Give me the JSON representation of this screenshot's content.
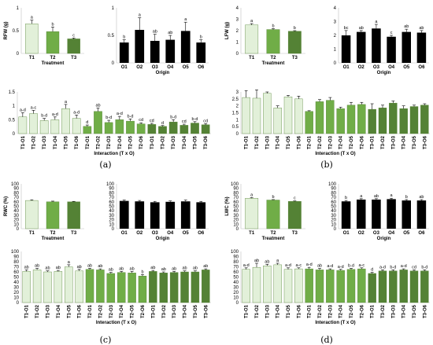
{
  "chart_data": [
    {
      "id": "a-treat",
      "type": "bar",
      "categories": [
        "T1",
        "T2",
        "T3"
      ],
      "values": [
        0.65,
        0.48,
        0.32
      ],
      "errors": [
        0.08,
        0.1,
        0.02
      ],
      "letters": [
        "a",
        "b",
        "c"
      ],
      "colors": [
        "#e2f0d9",
        "#70ad47",
        "#548235"
      ],
      "xlabel": "Treatment",
      "ylabel": "RFW (g)",
      "ylim": [
        0,
        1
      ],
      "ticks": [
        0,
        0.5,
        1
      ],
      "tick_labels": [
        "0",
        "0.5",
        "1"
      ]
    },
    {
      "id": "a-origin",
      "type": "bar",
      "categories": [
        "O1",
        "O2",
        "O3",
        "O4",
        "O5",
        "O6"
      ],
      "values": [
        0.37,
        0.6,
        0.4,
        0.42,
        0.58,
        0.37
      ],
      "errors": [
        0.05,
        0.22,
        0.12,
        0.08,
        0.16,
        0.05
      ],
      "letters": [
        "b",
        "a",
        "ab",
        "ab",
        "a",
        "b"
      ],
      "colors": [
        "#000000"
      ],
      "xlabel": "Origin",
      "ylabel": "",
      "ylim": [
        0,
        1
      ],
      "ticks": [
        0,
        0.5,
        1
      ],
      "tick_labels": [
        "0",
        "0.5",
        "1"
      ]
    },
    {
      "id": "a-inter",
      "type": "bar",
      "categories": [
        "T1-O1",
        "T1-O2",
        "T1-O3",
        "T1-O4",
        "T1-O5",
        "T1-O6",
        "T2-O1",
        "T2-O2",
        "T2-O3",
        "T2-O4",
        "T2-O5",
        "T2-O6",
        "T3-O1",
        "T3-O2",
        "T3-O3",
        "T3-O4",
        "T3-O5",
        "T3-O6"
      ],
      "values": [
        0.6,
        0.72,
        0.47,
        0.5,
        0.9,
        0.55,
        0.26,
        0.8,
        0.4,
        0.5,
        0.45,
        0.35,
        0.33,
        0.26,
        0.42,
        0.3,
        0.38,
        0.32
      ],
      "errors": [
        0.15,
        0.12,
        0.08,
        0.1,
        0.15,
        0.12,
        0.05,
        0.12,
        0.08,
        0.12,
        0.08,
        0.04,
        0.04,
        0.03,
        0.08,
        0.04,
        0.05,
        0.04
      ],
      "letters": [
        "a-d",
        "a-c",
        "b-d",
        "a-d",
        "a",
        "a-d",
        "d",
        "ab",
        "b-d",
        "a-d",
        "b-d",
        "cd",
        "cd",
        "d",
        "b-d",
        "cd",
        "b-d",
        "cd"
      ],
      "colors": [
        "#e2f0d9",
        "#70ad47",
        "#548235"
      ],
      "xlabel": "Interaction (T x O)",
      "ylabel": "",
      "ylim": [
        0,
        1.5
      ],
      "ticks": [
        0,
        0.5,
        1,
        1.5
      ],
      "tick_labels": [
        "0",
        "0.5",
        "1",
        "1.5"
      ]
    },
    {
      "id": "b-treat",
      "type": "bar",
      "categories": [
        "T1",
        "T2",
        "T3"
      ],
      "values": [
        2.5,
        2.1,
        1.95
      ],
      "errors": [
        0.12,
        0.08,
        0.05
      ],
      "letters": [
        "a",
        "b",
        "b"
      ],
      "colors": [
        "#e2f0d9",
        "#70ad47",
        "#548235"
      ],
      "xlabel": "Treatment",
      "ylabel": "LFW (g)",
      "ylim": [
        0,
        4
      ],
      "ticks": [
        0,
        1,
        2,
        3,
        4
      ],
      "tick_labels": [
        "0",
        "1",
        "2",
        "3",
        "4"
      ]
    },
    {
      "id": "b-origin",
      "type": "bar",
      "categories": [
        "O1",
        "O2",
        "O3",
        "O4",
        "O5",
        "O6"
      ],
      "values": [
        2.0,
        2.25,
        2.5,
        1.9,
        2.25,
        2.2
      ],
      "errors": [
        0.35,
        0.1,
        0.3,
        0.1,
        0.2,
        0.15
      ],
      "letters": [
        "bc",
        "ab",
        "a",
        "c",
        "ab",
        "ab"
      ],
      "colors": [
        "#000000"
      ],
      "xlabel": "Origin",
      "ylabel": "",
      "ylim": [
        0,
        4
      ],
      "ticks": [
        0,
        1,
        2,
        3,
        4
      ],
      "tick_labels": [
        "0",
        "1",
        "2",
        "3",
        "4"
      ]
    },
    {
      "id": "b-inter",
      "type": "bar",
      "categories": [
        "T1-O1",
        "T1-O2",
        "T1-O3",
        "T1-O4",
        "T1-O5",
        "T1-O6",
        "T2-O1",
        "T2-O2",
        "T2-O3",
        "T2-O4",
        "T2-O5",
        "T2-O6",
        "T3-O1",
        "T3-O2",
        "T3-O3",
        "T3-O4",
        "T3-O5",
        "T3-O6"
      ],
      "values": [
        2.6,
        2.55,
        2.9,
        1.85,
        2.65,
        2.5,
        1.6,
        2.3,
        2.4,
        1.8,
        2.05,
        2.1,
        1.75,
        1.85,
        2.2,
        1.8,
        1.95,
        2.05
      ],
      "errors": [
        0.5,
        0.6,
        0.1,
        0.15,
        0.1,
        0.2,
        0.05,
        0.15,
        0.2,
        0.1,
        0.2,
        0.15,
        0.4,
        0.2,
        0.15,
        0.2,
        0.1,
        0.1
      ],
      "letters": [
        "",
        "",
        "",
        "",
        "",
        "",
        "",
        "",
        "",
        "",
        "",
        "",
        "",
        "",
        "",
        "",
        "",
        ""
      ],
      "colors": [
        "#e2f0d9",
        "#70ad47",
        "#548235"
      ],
      "xlabel": "Interaction (T x O)",
      "ylabel": "",
      "ylim": [
        0,
        3
      ],
      "ticks": [
        0,
        0.5,
        1,
        1.5,
        2,
        2.5,
        3
      ],
      "tick_labels": [
        "0",
        "0.5",
        "1",
        "1.5",
        "2",
        "2.5",
        "3"
      ]
    },
    {
      "id": "c-treat",
      "type": "bar",
      "categories": [
        "T1",
        "T2",
        "T3"
      ],
      "values": [
        63,
        60,
        60
      ],
      "errors": [
        1.5,
        1.5,
        1
      ],
      "letters": [
        "",
        "",
        ""
      ],
      "colors": [
        "#e2f0d9",
        "#70ad47",
        "#548235"
      ],
      "xlabel": "Treatment",
      "ylabel": "RWC (%)",
      "ylim": [
        0,
        100
      ],
      "ticks": [
        0,
        10,
        20,
        30,
        40,
        50,
        60,
        70,
        80,
        90,
        100
      ],
      "tick_labels": [
        "0",
        "10",
        "20",
        "30",
        "40",
        "50",
        "60",
        "70",
        "80",
        "90",
        "100"
      ]
    },
    {
      "id": "c-origin",
      "type": "bar",
      "categories": [
        "O1",
        "O2",
        "O3",
        "O4",
        "O5",
        "O6"
      ],
      "values": [
        62,
        61,
        59,
        60,
        61,
        59
      ],
      "errors": [
        2,
        2,
        2,
        2,
        3,
        2
      ],
      "letters": [
        "",
        "",
        "",
        "",
        "",
        ""
      ],
      "colors": [
        "#000000"
      ],
      "xlabel": "Origin",
      "ylabel": "",
      "ylim": [
        0,
        100
      ],
      "ticks": [
        0,
        10,
        20,
        30,
        40,
        50,
        60,
        70,
        80,
        90,
        100
      ],
      "tick_labels": [
        "0",
        "10",
        "20",
        "30",
        "40",
        "50",
        "60",
        "70",
        "80",
        "90",
        "100"
      ]
    },
    {
      "id": "c-inter",
      "type": "bar",
      "categories": [
        "T1-O1",
        "T1-O2",
        "T1-O3",
        "T1-O4",
        "T1-O5",
        "T1-O6",
        "T2-O1",
        "T2-O2",
        "T2-O3",
        "T2-O4",
        "T2-O5",
        "T2-O6",
        "T3-O1",
        "T3-O2",
        "T3-O3",
        "T3-O4",
        "T3-O5",
        "T3-O6"
      ],
      "values": [
        61,
        64,
        60,
        61,
        70,
        62,
        65,
        64,
        57,
        59,
        58,
        52,
        61,
        58,
        59,
        60,
        60,
        64
      ],
      "errors": [
        3,
        3,
        2,
        2,
        4,
        3,
        2,
        2,
        2,
        2,
        3,
        3,
        2,
        2,
        2,
        2,
        2,
        2
      ],
      "letters": [
        "ab",
        "ab",
        "ab",
        "ab",
        "a",
        "ab",
        "ab",
        "ab",
        "ab",
        "ab",
        "ab",
        "b",
        "ab",
        "ab",
        "ab",
        "ab",
        "ab",
        "ab"
      ],
      "colors": [
        "#e2f0d9",
        "#70ad47",
        "#548235"
      ],
      "xlabel": "Interaction (T x O)",
      "ylabel": "",
      "ylim": [
        0,
        100
      ],
      "ticks": [
        0,
        10,
        20,
        30,
        40,
        50,
        60,
        70,
        80,
        90,
        100
      ],
      "tick_labels": [
        "0",
        "10",
        "20",
        "30",
        "40",
        "50",
        "60",
        "70",
        "80",
        "90",
        "100"
      ]
    },
    {
      "id": "d-treat",
      "type": "bar",
      "categories": [
        "T1",
        "T2",
        "T3"
      ],
      "values": [
        68,
        64,
        61
      ],
      "errors": [
        1.5,
        1,
        1
      ],
      "letters": [
        "a",
        "b",
        "c"
      ],
      "colors": [
        "#e2f0d9",
        "#70ad47",
        "#548235"
      ],
      "xlabel": "Treatment",
      "ylabel": "LWC (%)",
      "ylim": [
        0,
        100
      ],
      "ticks": [
        0,
        10,
        20,
        30,
        40,
        50,
        60,
        70,
        80,
        90,
        100
      ],
      "tick_labels": [
        "0",
        "10",
        "20",
        "30",
        "40",
        "50",
        "60",
        "70",
        "80",
        "90",
        "100"
      ]
    },
    {
      "id": "d-origin",
      "type": "bar",
      "categories": [
        "O1",
        "O2",
        "O3",
        "O4",
        "O5",
        "O6"
      ],
      "values": [
        61,
        65,
        65,
        66,
        63,
        63
      ],
      "errors": [
        2,
        2,
        2,
        2,
        2,
        2
      ],
      "letters": [
        "b",
        "a",
        "ab",
        "a",
        "b",
        "ab"
      ],
      "colors": [
        "#000000"
      ],
      "xlabel": "Origin",
      "ylabel": "",
      "ylim": [
        0,
        100
      ],
      "ticks": [
        0,
        10,
        20,
        30,
        40,
        50,
        60,
        70,
        80,
        90,
        100
      ],
      "tick_labels": [
        "0",
        "10",
        "20",
        "30",
        "40",
        "50",
        "60",
        "70",
        "80",
        "90",
        "100"
      ]
    },
    {
      "id": "d-inter",
      "type": "bar",
      "categories": [
        "T1-O1",
        "T1-O2",
        "T1-O3",
        "T1-O4",
        "T1-O5",
        "T1-O6",
        "T2-O1",
        "T2-O2",
        "T2-O3",
        "T2-O4",
        "T2-O5",
        "T2-O6",
        "T3-O1",
        "T3-O2",
        "T3-O3",
        "T3-O4",
        "T3-O5",
        "T3-O6"
      ],
      "values": [
        65,
        69,
        72,
        74,
        65,
        66,
        66,
        64,
        64,
        63,
        65,
        66,
        57,
        62,
        62,
        64,
        62,
        62
      ],
      "errors": [
        3,
        8,
        3,
        3,
        3,
        2,
        3,
        3,
        2,
        2,
        2,
        2,
        2,
        2,
        2,
        2,
        2,
        2
      ],
      "letters": [
        "a-d",
        "ab",
        "ab",
        "a",
        "a-d",
        "a-c",
        "a-d",
        "ab",
        "a-d",
        "a-d",
        "b-d",
        "a-c",
        "d",
        "a-d",
        "b-d",
        "a-d",
        "cd",
        "b-d"
      ],
      "colors": [
        "#e2f0d9",
        "#70ad47",
        "#548235"
      ],
      "xlabel": "Interaction (T x O)",
      "ylabel": "",
      "ylim": [
        0,
        100
      ],
      "ticks": [
        0,
        10,
        20,
        30,
        40,
        50,
        60,
        70,
        80,
        90,
        100
      ],
      "tick_labels": [
        "0",
        "10",
        "20",
        "30",
        "40",
        "50",
        "60",
        "70",
        "80",
        "90",
        "100"
      ]
    }
  ],
  "panel_labels": [
    "(a)",
    "(b)",
    "(c)",
    "(d)"
  ]
}
